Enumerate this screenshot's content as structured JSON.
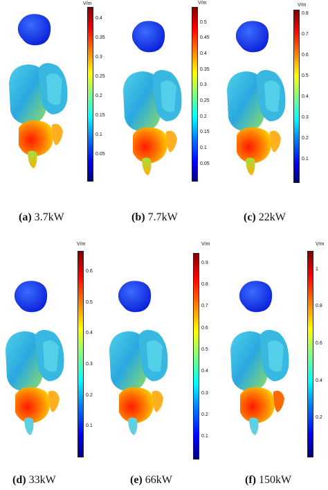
{
  "panels": [
    {
      "letter": "(a)",
      "power": "3.7kW",
      "unit": "V/m",
      "ticks": [
        "0.4",
        "0.35",
        "0.3",
        "0.25",
        "0.2",
        "0.15",
        "0.1",
        "0.05"
      ],
      "tickFracs": [
        0.933,
        0.822,
        0.711,
        0.6,
        0.489,
        0.378,
        0.267,
        0.156
      ]
    },
    {
      "letter": "(b)",
      "power": "7.7kW",
      "unit": "V/m",
      "ticks": [
        "0.5",
        "0.45",
        "0.4",
        "0.35",
        "0.3",
        "0.25",
        "0.2",
        "0.15",
        "0.1",
        "0.05"
      ],
      "tickFracs": [
        0.91,
        0.82,
        0.73,
        0.64,
        0.55,
        0.46,
        0.37,
        0.28,
        0.19,
        0.1
      ]
    },
    {
      "letter": "(c)",
      "power": "22kW",
      "unit": "V/m",
      "ticks": [
        "0.8",
        "0.7",
        "0.6",
        "0.5",
        "0.4",
        "0.3",
        "0.2",
        "0.1"
      ],
      "tickFracs": [
        0.975,
        0.855,
        0.735,
        0.615,
        0.495,
        0.375,
        0.255,
        0.135
      ]
    },
    {
      "letter": "(d)",
      "power": "33kW",
      "unit": "V/m",
      "ticks": [
        "0.6",
        "0.5",
        "0.4",
        "0.3",
        "0.2",
        "0.1"
      ],
      "tickFracs": [
        0.9,
        0.75,
        0.6,
        0.45,
        0.3,
        0.15
      ]
    },
    {
      "letter": "(e)",
      "power": "66kW",
      "unit": "V/m",
      "ticks": [
        "0.9",
        "0.8",
        "0.7",
        "0.6",
        "0.5",
        "0.4",
        "0.3",
        "0.2",
        "0.1"
      ],
      "tickFracs": [
        0.95,
        0.845,
        0.74,
        0.635,
        0.53,
        0.425,
        0.32,
        0.215,
        0.11
      ]
    },
    {
      "letter": "(f)",
      "power": "150kW",
      "unit": "V/m",
      "ticks": [
        "1",
        "0.8",
        "0.6",
        "0.4",
        "0.2"
      ],
      "tickFracs": [
        0.91,
        0.73,
        0.55,
        0.37,
        0.19
      ]
    }
  ]
}
